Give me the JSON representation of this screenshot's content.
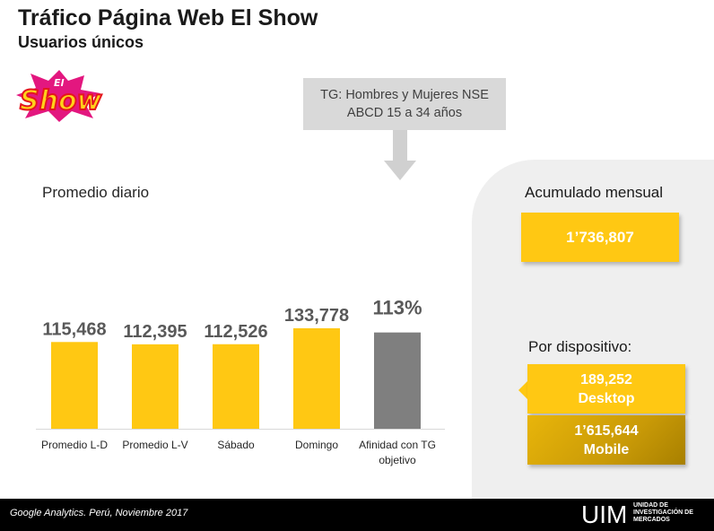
{
  "header": {
    "title": "Tráfico Página Web El Show",
    "subtitle": "Usuarios únicos"
  },
  "logo": {
    "text": "Show",
    "small_text": "El",
    "icon": "el-show-logo"
  },
  "target_group": {
    "line1": "TG: Hombres y Mujeres NSE",
    "line2": "ABCD 15 a 34 años"
  },
  "section_label": "Promedio diario",
  "chart_data": {
    "type": "bar",
    "title": "",
    "xlabel": "",
    "ylabel": "",
    "ylim": [
      0,
      160000
    ],
    "grid": false,
    "categories": [
      "Promedio L-D",
      "Promedio L-V",
      "Sábado",
      "Domingo"
    ],
    "values": [
      115468,
      112395,
      112526,
      133778
    ],
    "data_labels": [
      "115,468",
      "112,395",
      "112,526",
      "133,778"
    ],
    "affinity": {
      "category_line1": "Afinidad con TG",
      "category_line2": "objetivo",
      "value": 113,
      "label": "113%"
    },
    "colors": {
      "bars": "#ffc813",
      "affinity_bar": "#7f7f7f",
      "labels": "#595959"
    }
  },
  "accumulated": {
    "label": "Acumulado mensual",
    "value": "1’736,807"
  },
  "devices": {
    "label": "Por dispositivo:",
    "desktop": {
      "value": "189,252",
      "name": "Desktop"
    },
    "mobile": {
      "value": "1’615,644",
      "name": "Mobile"
    }
  },
  "footer": {
    "source": "Google Analytics. Perú, Noviembre 2017",
    "brand": "UIM",
    "brand_line1": "UNIDAD DE",
    "brand_line2": "INVESTIGACIÓN DE",
    "brand_line3": "MERCADOS"
  },
  "colors": {
    "accent": "#ffc813",
    "panel": "#efefef",
    "footer": "#000000"
  }
}
